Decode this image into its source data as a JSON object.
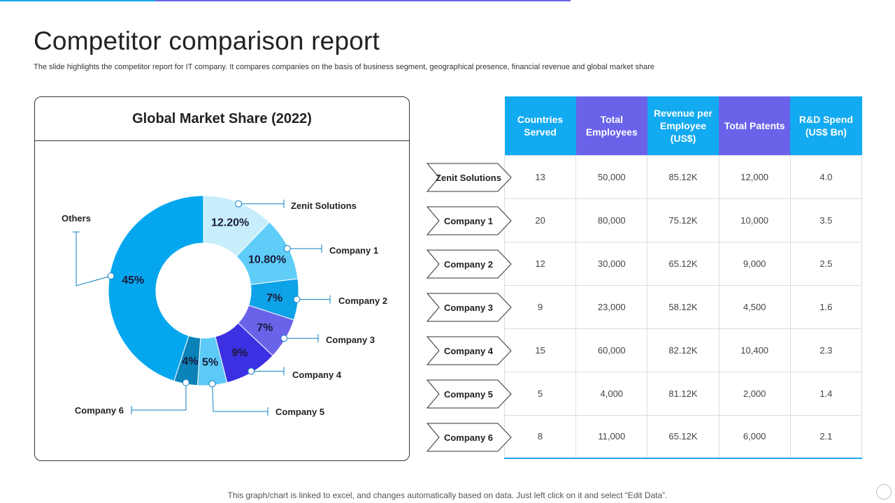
{
  "title": "Competitor comparison report",
  "subtitle": "The slide highlights the competitor report for IT company. It compares companies on the basis of business segment, geographical presence, financial revenue and global market share",
  "footer": "This graph/chart is linked to excel,  and changes automatically based on data. Just left click on it and select “Edit Data”.",
  "colors": {
    "accent_blue": "#1ca6ef",
    "accent_purple": "#6b63e8"
  },
  "chart_data": {
    "type": "pie",
    "title": "Global Market Share (2022)",
    "slices": [
      {
        "name": "Zenit Solutions",
        "label": "12.20%",
        "value": 12.2,
        "color": "#c8eefc"
      },
      {
        "name": "Company 1",
        "label": "10.80%",
        "value": 10.8,
        "color": "#5fcdf7"
      },
      {
        "name": "Company 2",
        "label": "7%",
        "value": 7,
        "color": "#0ea2e6"
      },
      {
        "name": "Company 3",
        "label": "7%",
        "value": 7,
        "color": "#6a63ea"
      },
      {
        "name": "Company 4",
        "label": "9%",
        "value": 9,
        "color": "#3b30e2"
      },
      {
        "name": "Company 5",
        "label": "5%",
        "value": 5,
        "color": "#5ccaf6"
      },
      {
        "name": "Company 6",
        "label": "4%",
        "value": 4,
        "color": "#0b82b8"
      },
      {
        "name": "Others",
        "label": "45%",
        "value": 45,
        "color": "#04a7ee"
      }
    ]
  },
  "table": {
    "headers": [
      {
        "text": "Countries Served",
        "color": "#12aaf0"
      },
      {
        "text": "Total Employees",
        "color": "#6a63ea"
      },
      {
        "text": "Revenue per Employee (US$)",
        "color": "#12aaf0"
      },
      {
        "text": "Total Patents",
        "color": "#6a63ea"
      },
      {
        "text": "R&D Spend (US$ Bn)",
        "color": "#12aaf0"
      }
    ],
    "rows": [
      {
        "label": "Zenit Solutions",
        "cells": [
          "13",
          "50,000",
          "85.12K",
          "12,000",
          "4.0"
        ]
      },
      {
        "label": "Company 1",
        "cells": [
          "20",
          "80,000",
          "75.12K",
          "10,000",
          "3.5"
        ]
      },
      {
        "label": "Company 2",
        "cells": [
          "12",
          "30,000",
          "65.12K",
          "9,000",
          "2.5"
        ]
      },
      {
        "label": "Company 3",
        "cells": [
          "9",
          "23,000",
          "58.12K",
          "4,500",
          "1.6"
        ]
      },
      {
        "label": "Company 4",
        "cells": [
          "15",
          "60,000",
          "82.12K",
          "10,400",
          "2.3"
        ]
      },
      {
        "label": "Company 5",
        "cells": [
          "5",
          "4,000",
          "81.12K",
          "2,000",
          "1.4"
        ]
      },
      {
        "label": "Company 6",
        "cells": [
          "8",
          "11,000",
          "65.12K",
          "6,000",
          "2.1"
        ]
      }
    ]
  }
}
